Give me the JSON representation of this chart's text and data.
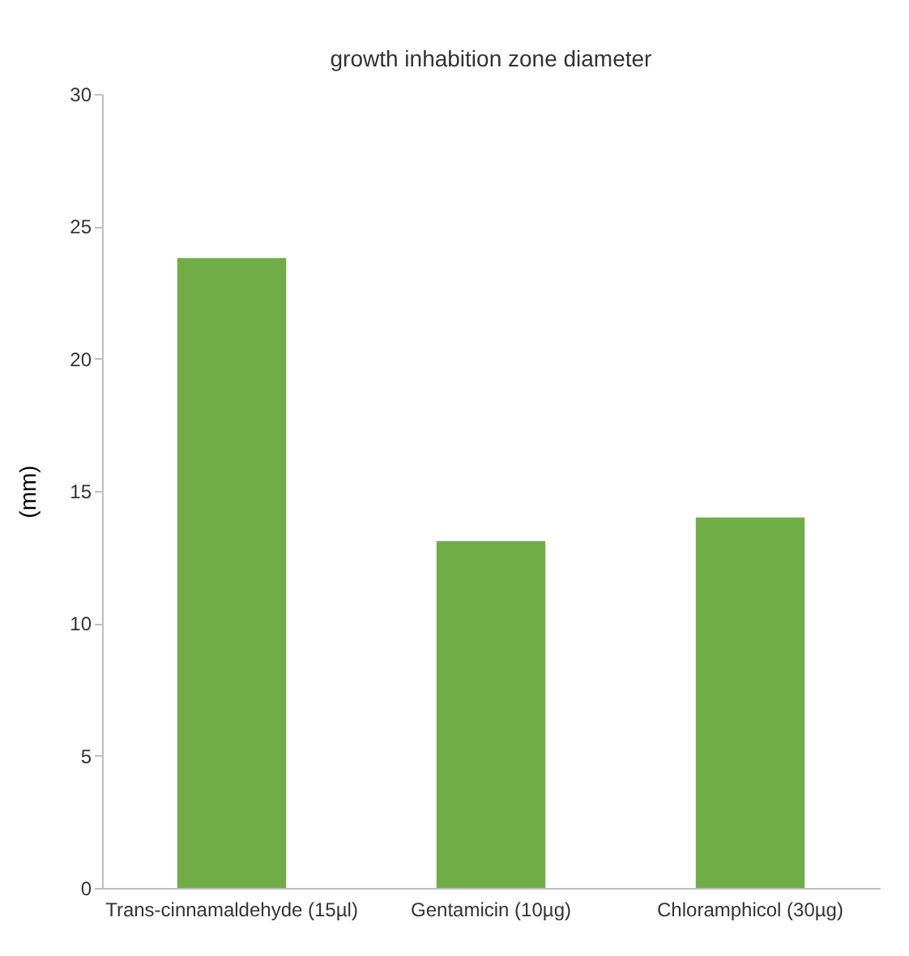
{
  "chart_data": {
    "type": "bar",
    "title": "growth inhabition zone diameter",
    "ylabel": "(mm)",
    "categories": [
      "Trans-cinnamaldehyde (15µl)",
      "Gentamicin (10µg)",
      "Chloramphicol (30µg)"
    ],
    "values": [
      23.8,
      13.1,
      14.0
    ],
    "color": "#70ad47",
    "ylim": [
      0,
      30
    ],
    "yticks": [
      0,
      5,
      10,
      15,
      20,
      25,
      30
    ],
    "grid": false
  }
}
